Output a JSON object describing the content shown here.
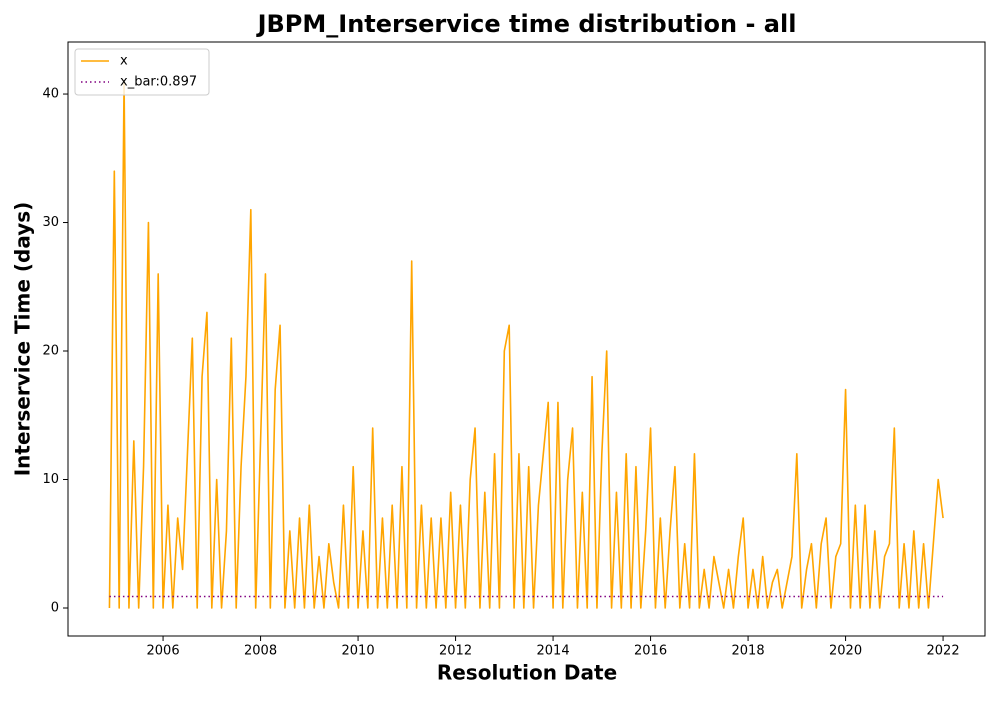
{
  "chart_data": {
    "type": "line",
    "title": "JBPM_Interservice time distribution - all",
    "x_label": "Resolution Date",
    "y_label": "Interservice Time (days)",
    "xlim": [
      2004.05,
      2022.86
    ],
    "ylim": [
      -2.18,
      44.05
    ],
    "xticks": [
      2006,
      2008,
      2010,
      2012,
      2014,
      2016,
      2018,
      2020,
      2022
    ],
    "yticks": [
      0,
      10,
      20,
      30,
      40
    ],
    "legend": "upper left",
    "series": [
      {
        "name": "x",
        "color": "#ffa500",
        "style": "solid",
        "x": [
          2004.9,
          2005.0,
          2005.1,
          2005.2,
          2005.3,
          2005.4,
          2005.5,
          2005.6,
          2005.7,
          2005.8,
          2005.9,
          2006.0,
          2006.1,
          2006.2,
          2006.3,
          2006.4,
          2006.5,
          2006.6,
          2006.7,
          2006.8,
          2006.9,
          2007.0,
          2007.1,
          2007.2,
          2007.3,
          2007.4,
          2007.5,
          2007.6,
          2007.7,
          2007.8,
          2007.9,
          2008.0,
          2008.1,
          2008.2,
          2008.3,
          2008.4,
          2008.5,
          2008.6,
          2008.7,
          2008.8,
          2008.9,
          2009.0,
          2009.1,
          2009.2,
          2009.3,
          2009.4,
          2009.5,
          2009.6,
          2009.7,
          2009.8,
          2009.9,
          2010.0,
          2010.1,
          2010.2,
          2010.3,
          2010.4,
          2010.5,
          2010.6,
          2010.7,
          2010.8,
          2010.9,
          2011.0,
          2011.1,
          2011.2,
          2011.3,
          2011.4,
          2011.5,
          2011.6,
          2011.7,
          2011.8,
          2011.9,
          2012.0,
          2012.1,
          2012.2,
          2012.3,
          2012.4,
          2012.5,
          2012.6,
          2012.7,
          2012.8,
          2012.9,
          2013.0,
          2013.1,
          2013.2,
          2013.3,
          2013.4,
          2013.5,
          2013.6,
          2013.7,
          2013.8,
          2013.9,
          2014.0,
          2014.1,
          2014.2,
          2014.3,
          2014.4,
          2014.5,
          2014.6,
          2014.7,
          2014.8,
          2014.9,
          2015.0,
          2015.1,
          2015.2,
          2015.3,
          2015.4,
          2015.5,
          2015.6,
          2015.7,
          2015.8,
          2015.9,
          2016.0,
          2016.1,
          2016.2,
          2016.3,
          2016.4,
          2016.5,
          2016.6,
          2016.7,
          2016.8,
          2016.9,
          2017.0,
          2017.1,
          2017.2,
          2017.3,
          2017.4,
          2017.5,
          2017.6,
          2017.7,
          2017.8,
          2017.9,
          2018.0,
          2018.1,
          2018.2,
          2018.3,
          2018.4,
          2018.5,
          2018.6,
          2018.7,
          2018.8,
          2018.9,
          2019.0,
          2019.1,
          2019.2,
          2019.3,
          2019.4,
          2019.5,
          2019.6,
          2019.7,
          2019.8,
          2019.9,
          2020.0,
          2020.1,
          2020.2,
          2020.3,
          2020.4,
          2020.5,
          2020.6,
          2020.7,
          2020.8,
          2020.9,
          2021.0,
          2021.1,
          2021.2,
          2021.3,
          2021.4,
          2021.5,
          2021.6,
          2021.7,
          2021.8,
          2021.9,
          2022.0
        ],
        "values": [
          0,
          34,
          0,
          41,
          0,
          13,
          0,
          11,
          30,
          0,
          26,
          0,
          8,
          0,
          7,
          3,
          12,
          21,
          0,
          18,
          23,
          0,
          10,
          0,
          6,
          21,
          0,
          11,
          18,
          31,
          0,
          13,
          26,
          0,
          17,
          22,
          0,
          6,
          0,
          7,
          0,
          8,
          0,
          4,
          0,
          5,
          2,
          0,
          8,
          0,
          11,
          0,
          6,
          0,
          14,
          0,
          7,
          0,
          8,
          0,
          11,
          0,
          27,
          0,
          8,
          0,
          7,
          0,
          7,
          0,
          9,
          0,
          8,
          0,
          10,
          14,
          0,
          9,
          0,
          12,
          0,
          20,
          22,
          0,
          12,
          0,
          11,
          0,
          8,
          12,
          16,
          0,
          16,
          0,
          10,
          14,
          0,
          9,
          0,
          18,
          0,
          12,
          20,
          0,
          9,
          0,
          12,
          0,
          11,
          0,
          6,
          14,
          0,
          7,
          0,
          6,
          11,
          0,
          5,
          0,
          12,
          0,
          3,
          0,
          4,
          2,
          0,
          3,
          0,
          4,
          7,
          0,
          3,
          0,
          4,
          0,
          2,
          3,
          0,
          2,
          4,
          12,
          0,
          3,
          5,
          0,
          5,
          7,
          0,
          4,
          5,
          17,
          0,
          8,
          0,
          8,
          0,
          6,
          0,
          4,
          5,
          14,
          0,
          5,
          0,
          6,
          0,
          5,
          0,
          5,
          10,
          7
        ]
      },
      {
        "name": "x_bar:0.897",
        "color": "#800080",
        "style": "dotted",
        "x": [
          2004.9,
          2022.0
        ],
        "values": [
          0.897,
          0.897
        ]
      }
    ]
  }
}
